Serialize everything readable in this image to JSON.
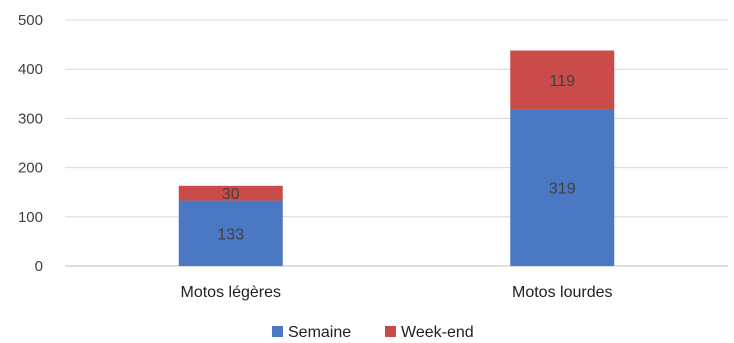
{
  "chart_data": {
    "type": "bar",
    "stacked": true,
    "categories": [
      "Motos légères",
      "Motos lourdes"
    ],
    "series": [
      {
        "name": "Semaine",
        "values": [
          133,
          319
        ],
        "color": "#4a78c2"
      },
      {
        "name": "Week-end",
        "values": [
          30,
          119
        ],
        "color": "#c94c4a"
      }
    ],
    "data_labels": true,
    "ylim": [
      0,
      500
    ],
    "yticks": [
      0,
      100,
      200,
      300,
      400,
      500
    ],
    "grid": true,
    "legend_position": "bottom",
    "title": "",
    "xlabel": "",
    "ylabel": ""
  }
}
